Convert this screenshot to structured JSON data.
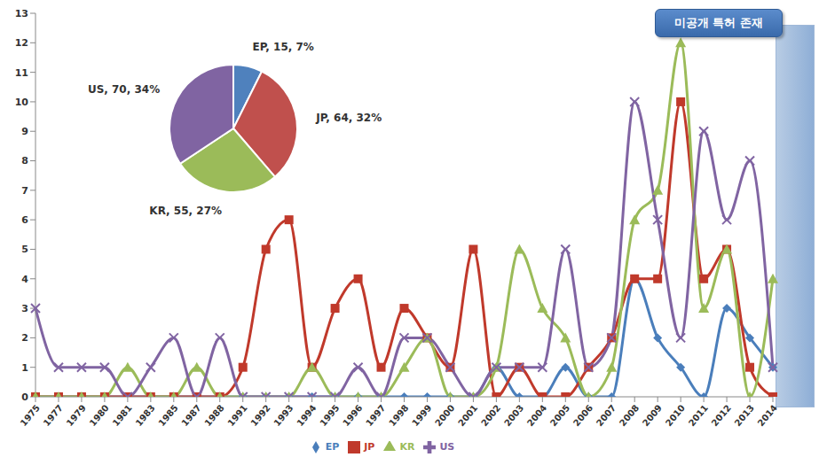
{
  "chart_data": [
    {
      "type": "line",
      "categories": [
        "1975",
        "1977",
        "1979",
        "1980",
        "1981",
        "1983",
        "1985",
        "1987",
        "1988",
        "1991",
        "1992",
        "1993",
        "1994",
        "1995",
        "1996",
        "1997",
        "1998",
        "1999",
        "2000",
        "2001",
        "2002",
        "2003",
        "2004",
        "2005",
        "2006",
        "2007",
        "2008",
        "2009",
        "2010",
        "2011",
        "2012",
        "2013",
        "2014"
      ],
      "series": [
        {
          "name": "EP",
          "color": "#4a7ebb",
          "marker": "diamond",
          "line_style": "smooth",
          "values": [
            0,
            0,
            0,
            0,
            0,
            0,
            0,
            0,
            0,
            0,
            0,
            0,
            0,
            0,
            0,
            0,
            0,
            0,
            0,
            0,
            1,
            0,
            0,
            1,
            0,
            0,
            4,
            2,
            1,
            0,
            3,
            2,
            1
          ]
        },
        {
          "name": "JP",
          "color": "#c0392b",
          "marker": "square",
          "line_style": "smooth",
          "values": [
            0,
            0,
            0,
            0,
            0,
            0,
            0,
            0,
            0,
            1,
            5,
            6,
            1,
            3,
            4,
            1,
            3,
            2,
            1,
            5,
            0,
            1,
            0,
            0,
            1,
            2,
            4,
            4,
            10,
            4,
            5,
            1,
            0
          ]
        },
        {
          "name": "KR",
          "color": "#9bbb59",
          "marker": "triangle",
          "line_style": "smooth",
          "values": [
            0,
            0,
            0,
            0,
            1,
            0,
            0,
            1,
            0,
            0,
            0,
            0,
            1,
            0,
            0,
            0,
            1,
            2,
            0,
            0,
            1,
            5,
            3,
            2,
            0,
            1,
            6,
            7,
            12,
            3,
            5,
            0,
            4
          ]
        },
        {
          "name": "US",
          "color": "#8064a2",
          "marker": "cross",
          "line_style": "smooth",
          "values": [
            3,
            1,
            1,
            1,
            0,
            1,
            2,
            0,
            2,
            0,
            0,
            0,
            0,
            0,
            1,
            0,
            2,
            2,
            1,
            0,
            1,
            1,
            1,
            5,
            1,
            2,
            10,
            6,
            2,
            9,
            6,
            8,
            1
          ]
        }
      ],
      "ylim": [
        0,
        13
      ],
      "yticks": [
        0,
        1,
        2,
        3,
        4,
        5,
        6,
        7,
        8,
        9,
        10,
        11,
        12,
        13
      ],
      "grid": false,
      "legend": "bottom",
      "annotations": [
        "미공개 특허 존재"
      ]
    },
    {
      "type": "pie",
      "categories": [
        "EP",
        "JP",
        "KR",
        "US"
      ],
      "values": [
        15,
        64,
        55,
        70
      ],
      "value_labels": [
        "EP, 15, 7%",
        "JP, 64, 32%",
        "KR, 55, 27%",
        "US, 70, 34%"
      ],
      "colors": [
        "#4f81bd",
        "#c0504d",
        "#9bbb59",
        "#8064a2"
      ],
      "data_labels": true
    }
  ]
}
